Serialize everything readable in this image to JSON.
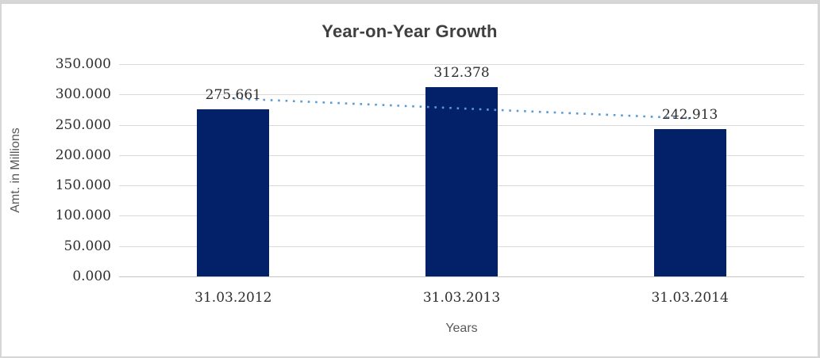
{
  "chart_data": {
    "type": "bar",
    "title": "Year-on-Year Growth",
    "xlabel": "Years",
    "ylabel": "Amt. in Millions",
    "categories": [
      "31.03.2012",
      "31.03.2013",
      "31.03.2014"
    ],
    "values": [
      275.661,
      312.378,
      242.913
    ],
    "data_labels": [
      "275.661",
      "312.378",
      "242.913"
    ],
    "y_tick_labels": [
      "350.000",
      "300.000",
      "250.000",
      "200.000",
      "150.000",
      "100.000",
      "50.000",
      "0.000"
    ],
    "ylim": [
      0,
      350
    ],
    "grid": true,
    "legend": "none",
    "trendline": "linear-dotted",
    "colors": {
      "bar": "#032169",
      "trendline": "#5b9bd5",
      "gridline": "#dadada",
      "title_text": "#3f3f3f",
      "tick_text": "#2e2e2e",
      "axis_title_text": "#595959",
      "frame_border": "#d6d6d6",
      "background": "#ffffff"
    }
  }
}
